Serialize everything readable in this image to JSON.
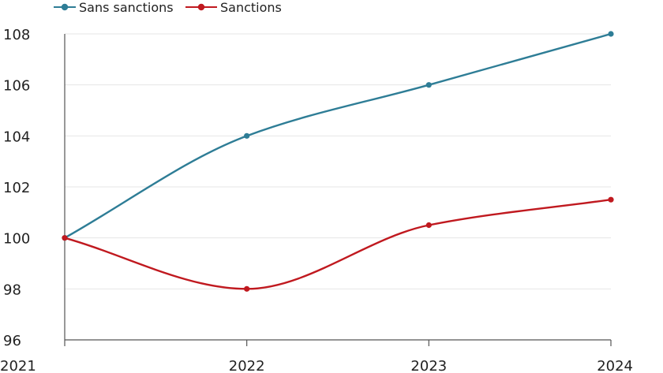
{
  "chart_data": {
    "type": "line",
    "title": "",
    "xlabel": "",
    "ylabel": "",
    "categories": [
      "2021",
      "2022",
      "2023",
      "2024"
    ],
    "x": [
      2021,
      2022,
      2023,
      2024
    ],
    "ylim": [
      96,
      108
    ],
    "yticks": [
      96,
      98,
      100,
      102,
      104,
      106,
      108
    ],
    "grid": "horizontal",
    "legend_position": "top-left",
    "series": [
      {
        "name": "Sans sanctions",
        "color": "#2e7d96",
        "values": [
          100,
          104,
          106,
          108
        ]
      },
      {
        "name": "Sanctions",
        "color": "#c0191f",
        "values": [
          100,
          98,
          100.5,
          101.5
        ]
      }
    ]
  }
}
